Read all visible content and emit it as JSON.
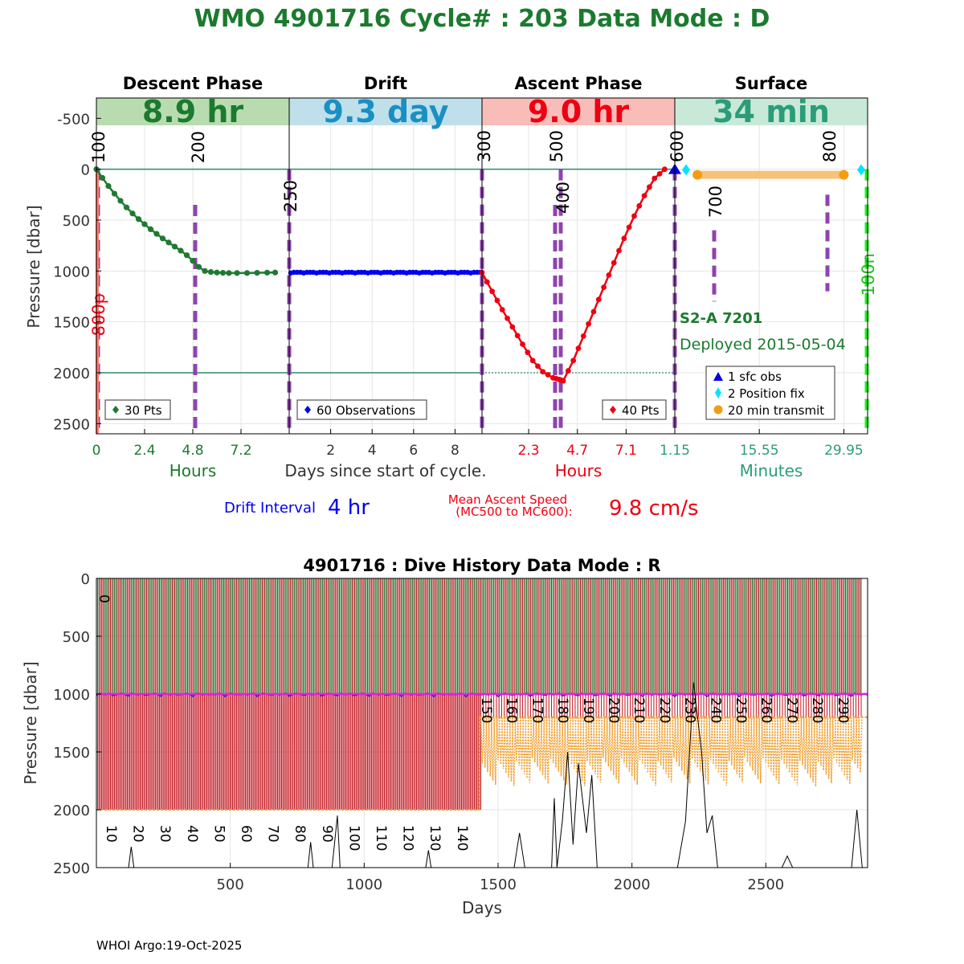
{
  "title": "WMO 4901716   Cycle# : 203   Data Mode : D",
  "colors": {
    "title": "#1b7a2e",
    "descent": "#1e7a32",
    "drift": "#0000ee",
    "ascent": "#ee0011",
    "surface": "#2a9d78",
    "dash": "#8e44ad",
    "grid": "#e4e4e4",
    "band_descent": "#b8dcb0",
    "band_drift": "#bfe0ea",
    "band_ascent": "#f8bdb9",
    "band_surface": "#c9e9d8",
    "transmit": "#f6c27a",
    "pos_fix": "#00e5ff",
    "sfc_obs": "#0000dd"
  },
  "top": {
    "phase_headers": [
      "Descent Phase",
      "Drift",
      "Ascent Phase",
      "Surface"
    ],
    "durations": [
      {
        "text": "8.9 hr",
        "color": "#1b7a2e"
      },
      {
        "text": "9.3 day",
        "color": "#1a8fc4"
      },
      {
        "text": "9.0 hr",
        "color": "#ee0011"
      },
      {
        "text": "34 min",
        "color": "#2a9d78"
      }
    ],
    "ylabel": "Pressure [dbar]",
    "ylim": [
      -700,
      2600
    ],
    "yticks": [
      -500,
      0,
      500,
      1000,
      1500,
      2000,
      2500
    ],
    "reference_lines": [
      0,
      2000
    ],
    "panel_ticks": [
      {
        "labels": [
          "0",
          "2.4",
          "4.8",
          "7.2"
        ],
        "color": "#1b7a2e",
        "positions": [
          0,
          2.4,
          4.8,
          7.2
        ],
        "range": [
          0,
          9.6
        ]
      },
      {
        "labels": [
          "2",
          "4",
          "6",
          "8"
        ],
        "color": "#333333",
        "positions": [
          2,
          4,
          6,
          8
        ],
        "range": [
          0,
          9.3
        ]
      },
      {
        "labels": [
          "2.3",
          "4.7",
          "7.1"
        ],
        "color": "#ee0011",
        "positions": [
          2.3,
          4.7,
          7.1
        ],
        "range": [
          0,
          9.5
        ]
      },
      {
        "labels": [
          "1.15",
          "15.55",
          "29.95"
        ],
        "color": "#2a9d78",
        "positions": [
          1.15,
          15.55,
          29.95
        ],
        "range": [
          1.15,
          34
        ]
      }
    ],
    "xlabels": [
      {
        "text": "Hours",
        "color": "#1b7a2e"
      },
      {
        "text": "Days since start of cycle.",
        "color": "#333333"
      },
      {
        "text": "Hours",
        "color": "#ee0011"
      },
      {
        "text": "Minutes",
        "color": "#2a9d78"
      }
    ],
    "mc_labels": [
      {
        "text": "100",
        "color": "#000000"
      },
      {
        "text": "200",
        "color": "#000000"
      },
      {
        "text": "250",
        "color": "#000000"
      },
      {
        "text": "300",
        "color": "#000000"
      },
      {
        "text": "400",
        "color": "#000000"
      },
      {
        "text": "500",
        "color": "#000000"
      },
      {
        "text": "600",
        "color": "#000000"
      },
      {
        "text": "700",
        "color": "#000000"
      },
      {
        "text": "800",
        "color": "#000000"
      },
      {
        "text": "800p",
        "color": "#ee0011"
      },
      {
        "text": "100n",
        "color": "#22bb22"
      }
    ],
    "float_type": "S2-A 7201",
    "deployed": "Deployed 2015-05-04",
    "legends": {
      "descent": "30 Pts",
      "drift": "60 Observations",
      "ascent": "40 Pts",
      "surface": [
        "1 sfc obs",
        "2 Position fix",
        "20 min transmit"
      ]
    },
    "drift_interval_label": "Drift Interval",
    "drift_interval_value": "4 hr",
    "ascent_speed_label_1": "Mean Ascent Speed",
    "ascent_speed_label_2": "(MC500 to MC600):",
    "ascent_speed_value": "9.8 cm/s"
  },
  "bottom": {
    "title": "4901716 : Dive History      Data Mode : R",
    "ylabel": "Pressure [dbar]",
    "xlabel": "Days",
    "xlim": [
      0,
      2880
    ],
    "ylim": [
      0,
      2500
    ],
    "xticks": [
      500,
      1000,
      1500,
      2000,
      2500
    ],
    "yticks": [
      0,
      500,
      1000,
      1500,
      2000,
      2500
    ],
    "cycle_labels_early": [
      "0",
      "10",
      "20",
      "30",
      "40",
      "50",
      "60",
      "70",
      "80",
      "90",
      "100",
      "110",
      "120",
      "130",
      "140"
    ],
    "cycle_labels_late": [
      "150",
      "160",
      "170",
      "180",
      "190",
      "200",
      "210",
      "220",
      "230",
      "240",
      "250",
      "260",
      "270",
      "280",
      "290"
    ]
  },
  "footer": "WHOI Argo:19-Oct-2025",
  "chart_data": [
    {
      "type": "line",
      "title": "WMO 4901716   Cycle# : 203   Data Mode : D",
      "ylabel": "Pressure [dbar]",
      "ylim": [
        -700,
        2600
      ],
      "series": [
        {
          "name": "30 Pts",
          "x_hours": [
            0,
            0.3,
            0.6,
            0.9,
            1.2,
            1.5,
            1.8,
            2.1,
            2.4,
            2.7,
            3.0,
            3.3,
            3.6,
            3.9,
            4.2,
            4.5,
            4.8,
            5.1,
            5.4,
            5.7,
            6.0,
            6.3,
            6.6,
            7.0,
            7.5,
            8.0,
            8.5,
            8.9
          ],
          "pressure": [
            0,
            85,
            165,
            240,
            310,
            375,
            435,
            490,
            540,
            590,
            635,
            680,
            720,
            760,
            800,
            845,
            900,
            960,
            1000,
            1010,
            1015,
            1018,
            1020,
            1020,
            1020,
            1018,
            1016,
            1015
          ]
        },
        {
          "name": "60 Observations",
          "x_days": [
            0,
            9.3
          ],
          "pressure": [
            1015,
            1015
          ]
        },
        {
          "name": "40 Pts",
          "x_hours": [
            0,
            0.5,
            1,
            1.5,
            2,
            2.5,
            3,
            3.5,
            3.8,
            4.0,
            4.5,
            5,
            5.5,
            6,
            6.5,
            7,
            7.5,
            8,
            8.5,
            9.0
          ],
          "pressure": [
            1015,
            1200,
            1380,
            1550,
            1720,
            1880,
            1990,
            2050,
            2065,
            2080,
            1880,
            1640,
            1400,
            1160,
            920,
            680,
            460,
            260,
            90,
            0
          ]
        }
      ],
      "surface": {
        "sfc_obs_pressure": 0,
        "position_fix_minutes": [
          1.15,
          34
        ],
        "transmit_minutes": [
          5,
          29.95
        ]
      }
    },
    {
      "type": "line",
      "title": "4901716 : Dive History      Data Mode : R",
      "xlabel": "Days",
      "ylabel": "Pressure [dbar]",
      "xlim": [
        0,
        2880
      ],
      "ylim": [
        0,
        2500
      ],
      "cycles": 295,
      "park_pressure": 1000,
      "profile_pressure_cycles_0_149": 2000,
      "profile_pressure_cycles_150_plus": 1200,
      "cycle_period_days_early": 9.6,
      "cycle_period_days_late": 9.8
    }
  ]
}
